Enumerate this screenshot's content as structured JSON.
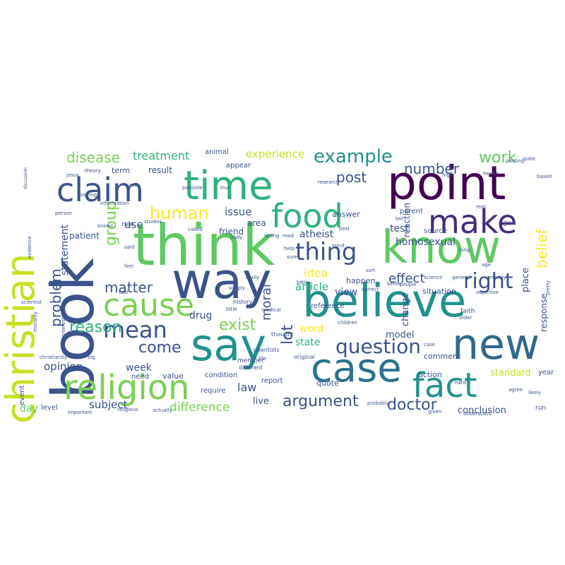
{
  "words": [
    {
      "text": "christian",
      "color": "#c8e020"
    },
    {
      "text": "book",
      "color": "#3b528b"
    },
    {
      "text": "claim",
      "color": "#3b528b"
    },
    {
      "text": "time",
      "color": "#2db27d"
    },
    {
      "text": "point",
      "color": "#440154"
    },
    {
      "text": "think",
      "color": "#5ec962"
    },
    {
      "text": "way",
      "color": "#3b528b"
    },
    {
      "text": "know",
      "color": "#5ec962"
    },
    {
      "text": "food",
      "color": "#2db27d"
    },
    {
      "text": "make",
      "color": "#472d7b"
    },
    {
      "text": "believe",
      "color": "#21918c"
    },
    {
      "text": "say",
      "color": "#21918c"
    },
    {
      "text": "new",
      "color": "#31688e"
    },
    {
      "text": "case",
      "color": "#2c728e"
    },
    {
      "text": "fact",
      "color": "#21918c"
    },
    {
      "text": "religion",
      "color": "#7ad151"
    },
    {
      "text": "cause",
      "color": "#7ad151"
    },
    {
      "text": "mean",
      "color": "#3b528b"
    },
    {
      "text": "thing",
      "color": "#3b528b"
    },
    {
      "text": "right",
      "color": "#3b528b"
    },
    {
      "text": "question",
      "color": "#3b528b"
    },
    {
      "text": "human",
      "color": "#fde725"
    },
    {
      "text": "disease",
      "color": "#7ad151"
    },
    {
      "text": "example",
      "color": "#21918c"
    },
    {
      "text": "work",
      "color": "#5ec962"
    },
    {
      "text": "number",
      "color": "#3b528b"
    },
    {
      "text": "post",
      "color": "#3b528b"
    },
    {
      "text": "group",
      "color": "#7ad151"
    },
    {
      "text": "belief",
      "color": "#fde725"
    },
    {
      "text": "reason",
      "color": "#2db27d"
    },
    {
      "text": "come",
      "color": "#3b528b"
    },
    {
      "text": "exist",
      "color": "#7ad151"
    },
    {
      "text": "idea",
      "color": "#fde725"
    },
    {
      "text": "effect",
      "color": "#3b528b"
    },
    {
      "text": "matter",
      "color": "#3b528b"
    },
    {
      "text": "moral",
      "color": "#3b528b"
    },
    {
      "text": "argument",
      "color": "#3b528b"
    },
    {
      "text": "doctor",
      "color": "#3b528b"
    },
    {
      "text": "lot",
      "color": "#3b528b"
    },
    {
      "text": "problem",
      "color": "#3b528b"
    },
    {
      "text": "treatment",
      "color": "#2db27d"
    },
    {
      "text": "experience",
      "color": "#c8e020"
    },
    {
      "text": "law",
      "color": "#3b528b"
    },
    {
      "text": "difference",
      "color": "#7ad151"
    },
    {
      "text": "subject",
      "color": "#3b528b"
    },
    {
      "text": "opinion",
      "color": "#3b528b"
    },
    {
      "text": "week",
      "color": "#3b528b"
    },
    {
      "text": "day",
      "color": "#5ec962"
    },
    {
      "text": "article",
      "color": "#2db27d"
    },
    {
      "text": "view",
      "color": "#3b528b"
    },
    {
      "text": "test",
      "color": "#3b528b"
    },
    {
      "text": "homosexual",
      "color": "#3b528b"
    },
    {
      "text": "issue",
      "color": "#3b528b"
    },
    {
      "text": "use",
      "color": "#3b528b"
    },
    {
      "text": "statement",
      "color": "#3b528b"
    },
    {
      "text": "atheist",
      "color": "#3b528b"
    },
    {
      "text": "drug",
      "color": "#3b528b"
    },
    {
      "text": "word",
      "color": "#fde725"
    },
    {
      "text": "state",
      "color": "#2db27d"
    },
    {
      "text": "live",
      "color": "#3b528b"
    },
    {
      "text": "response",
      "color": "#3b528b"
    },
    {
      "text": "place",
      "color": "#3b528b"
    },
    {
      "text": "model",
      "color": "#3b528b"
    },
    {
      "text": "change",
      "color": "#3b528b"
    },
    {
      "text": "standard",
      "color": "#c8e020"
    },
    {
      "text": "conclusion",
      "color": "#3b528b"
    },
    {
      "text": "level",
      "color": "#3b528b"
    },
    {
      "text": "value",
      "color": "#3b528b"
    },
    {
      "text": "friend",
      "color": "#3b528b"
    },
    {
      "text": "area",
      "color": "#3b528b"
    },
    {
      "text": "term",
      "color": "#3b528b"
    },
    {
      "text": "result",
      "color": "#3b528b"
    },
    {
      "text": "patient",
      "color": "#3b528b"
    },
    {
      "text": "answer",
      "color": "#3b528b"
    },
    {
      "text": "reaction",
      "color": "#3b528b"
    },
    {
      "text": "parent",
      "color": "#3b528b"
    },
    {
      "text": "source",
      "color": "#3b528b"
    },
    {
      "text": "situation",
      "color": "#3b528b"
    },
    {
      "text": "year",
      "color": "#3b528b"
    },
    {
      "text": "quote",
      "color": "#3b528b"
    },
    {
      "text": "action",
      "color": "#3b528b"
    },
    {
      "text": "comment",
      "color": "#3b528b"
    },
    {
      "text": "report",
      "color": "#3b528b"
    },
    {
      "text": "condition",
      "color": "#3b528b"
    },
    {
      "text": "require",
      "color": "#3b528b"
    },
    {
      "text": "animal",
      "color": "#3b528b"
    },
    {
      "text": "appear",
      "color": "#3b528b"
    },
    {
      "text": "happen",
      "color": "#3b528b"
    },
    {
      "text": "reference",
      "color": "#3b528b"
    },
    {
      "text": "event",
      "color": "#3b528b"
    },
    {
      "text": "need",
      "color": "#3b528b"
    },
    {
      "text": "rule",
      "color": "#3b528b"
    },
    {
      "text": "god",
      "color": "#3b528b"
    },
    {
      "text": "faith",
      "color": "#3b528b"
    },
    {
      "text": "run",
      "color": "#3b528b"
    },
    {
      "text": "history",
      "color": "#3b528b"
    },
    {
      "text": "member",
      "color": "#3b528b"
    },
    {
      "text": "life",
      "color": "#3b528b"
    },
    {
      "text": "science",
      "color": "#3b528b"
    },
    {
      "text": "general",
      "color": "#3b528b"
    },
    {
      "text": "certainly",
      "color": "#3b528b"
    },
    {
      "text": "objective",
      "color": "#3b528b"
    },
    {
      "text": "likely",
      "color": "#3b528b"
    },
    {
      "text": "agree",
      "color": "#3b528b"
    },
    {
      "text": "given",
      "color": "#3b528b"
    },
    {
      "text": "understand",
      "color": "#3b528b"
    },
    {
      "text": "probably",
      "color": "#3b528b"
    },
    {
      "text": "religious",
      "color": "#3b528b"
    },
    {
      "text": "actually",
      "color": "#3b528b"
    },
    {
      "text": "important",
      "color": "#3b528b"
    },
    {
      "text": "different",
      "color": "#3b528b"
    },
    {
      "text": "scientists",
      "color": "#3b528b"
    },
    {
      "text": "thought",
      "color": "#3b528b"
    },
    {
      "text": "original",
      "color": "#3b528b"
    },
    {
      "text": "children",
      "color": "#3b528b"
    },
    {
      "text": "medical",
      "color": "#3b528b"
    },
    {
      "text": "studies",
      "color": "#3b528b"
    },
    {
      "text": "saying",
      "color": "#3b528b"
    },
    {
      "text": "called",
      "color": "#3b528b"
    },
    {
      "text": "research",
      "color": "#3b528b"
    },
    {
      "text": "health",
      "color": "#3b528b"
    },
    {
      "text": "high",
      "color": "#3b528b"
    },
    {
      "text": "pretty",
      "color": "#3b528b"
    },
    {
      "text": "posting",
      "color": "#3b528b"
    },
    {
      "text": "quite",
      "color": "#3b528b"
    },
    {
      "text": "based",
      "color": "#3b528b"
    },
    {
      "text": "order",
      "color": "#3b528b"
    },
    {
      "text": "correct",
      "color": "#3b528b"
    },
    {
      "text": "better",
      "color": "#3b528b"
    },
    {
      "text": "people",
      "color": "#3b528b"
    },
    {
      "text": "sort",
      "color": "#3b528b"
    },
    {
      "text": "bible",
      "color": "#3b528b"
    },
    {
      "text": "wrong",
      "color": "#3b528b"
    },
    {
      "text": "body",
      "color": "#3b528b"
    },
    {
      "text": "read",
      "color": "#3b528b"
    },
    {
      "text": "help",
      "color": "#3b528b"
    },
    {
      "text": "best",
      "color": "#3b528b"
    },
    {
      "text": "age",
      "color": "#3b528b"
    },
    {
      "text": "said",
      "color": "#3b528b"
    },
    {
      "text": "feel",
      "color": "#3b528b"
    },
    {
      "text": "little",
      "color": "#3b528b"
    },
    {
      "text": "really",
      "color": "#3b528b"
    },
    {
      "text": "simply",
      "color": "#3b528b"
    },
    {
      "text": "hard",
      "color": "#3b528b"
    },
    {
      "text": "bad",
      "color": "#3b528b"
    },
    {
      "text": "real",
      "color": "#3b528b"
    },
    {
      "text": "christianity",
      "color": "#3b528b"
    },
    {
      "text": "theory",
      "color": "#3b528b"
    },
    {
      "text": "possible",
      "color": "#3b528b"
    },
    {
      "text": "true",
      "color": "#3b528b"
    },
    {
      "text": "act",
      "color": "#3b528b"
    },
    {
      "text": "jesus",
      "color": "#3b528b"
    },
    {
      "text": "information",
      "color": "#3b528b"
    },
    {
      "text": "person",
      "color": "#3b528b"
    },
    {
      "text": "morality",
      "color": "#3b528b"
    },
    {
      "text": "evidence",
      "color": "#3b528b"
    },
    {
      "text": "trying",
      "color": "#3b528b"
    },
    {
      "text": "interesting",
      "color": "#3b528b"
    },
    {
      "text": "scientist",
      "color": "#3b528b"
    },
    {
      "text": "discussion",
      "color": "#3b528b"
    },
    {
      "text": "big",
      "color": "#3b528b"
    },
    {
      "text": "known",
      "color": "#3b528b"
    },
    {
      "text": "long",
      "color": "#3b528b"
    },
    {
      "text": "tell",
      "color": "#3b528b"
    },
    {
      "text": "sure",
      "color": "#3b528b"
    },
    {
      "text": "mind",
      "color": "#3b528b"
    },
    {
      "text": "case",
      "color": "#3b528b"
    }
  ]
}
